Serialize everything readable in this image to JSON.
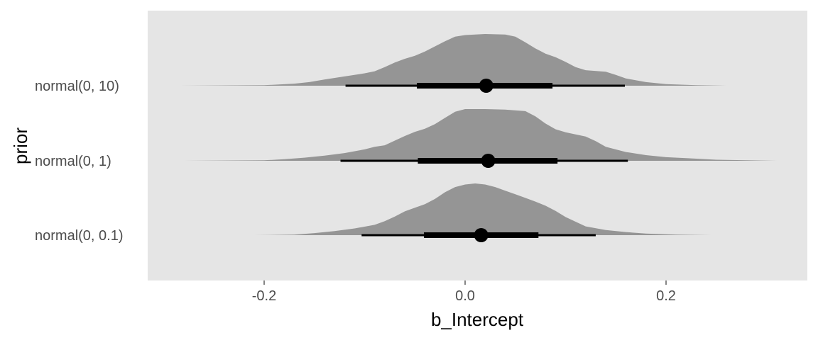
{
  "chart_data": {
    "type": "halfeye",
    "xlabel": "b_Intercept",
    "ylabel": "prior",
    "xlim": [
      -0.3,
      0.34
    ],
    "x_ticks": [
      -0.2,
      0.0,
      0.2
    ],
    "x_tick_labels": [
      "-0.2",
      "0.0",
      "0.2"
    ],
    "grid": false,
    "colors": {
      "panel": "#e5e5e5",
      "density": "#959595",
      "interval": "#000000",
      "tick_label": "#4d4d4d"
    },
    "categories": [
      "normal(0, 10)",
      "normal(0, 1)",
      "normal(0, 0.1)"
    ],
    "series": [
      {
        "label": "normal(0, 10)",
        "point": 0.021,
        "interval_66": [
          -0.048,
          0.087
        ],
        "interval_95": [
          -0.119,
          0.159
        ],
        "density": [
          [
            -0.285,
            0.0
          ],
          [
            -0.2,
            0.01
          ],
          [
            -0.17,
            0.04
          ],
          [
            -0.155,
            0.07
          ],
          [
            -0.14,
            0.12
          ],
          [
            -0.12,
            0.18
          ],
          [
            -0.1,
            0.24
          ],
          [
            -0.09,
            0.28
          ],
          [
            -0.08,
            0.36
          ],
          [
            -0.07,
            0.45
          ],
          [
            -0.06,
            0.52
          ],
          [
            -0.05,
            0.58
          ],
          [
            -0.04,
            0.66
          ],
          [
            -0.03,
            0.76
          ],
          [
            -0.02,
            0.86
          ],
          [
            -0.01,
            0.95
          ],
          [
            0.0,
            0.98
          ],
          [
            0.02,
            1.0
          ],
          [
            0.04,
            0.99
          ],
          [
            0.05,
            0.95
          ],
          [
            0.06,
            0.84
          ],
          [
            0.07,
            0.72
          ],
          [
            0.08,
            0.62
          ],
          [
            0.09,
            0.55
          ],
          [
            0.1,
            0.46
          ],
          [
            0.11,
            0.36
          ],
          [
            0.12,
            0.3
          ],
          [
            0.14,
            0.27
          ],
          [
            0.15,
            0.21
          ],
          [
            0.16,
            0.14
          ],
          [
            0.18,
            0.07
          ],
          [
            0.2,
            0.03
          ],
          [
            0.23,
            0.01
          ],
          [
            0.26,
            0.0
          ]
        ]
      },
      {
        "label": "normal(0, 1)",
        "point": 0.023,
        "interval_66": [
          -0.047,
          0.092
        ],
        "interval_95": [
          -0.124,
          0.162
        ],
        "density": [
          [
            -0.28,
            0.0
          ],
          [
            -0.2,
            0.01
          ],
          [
            -0.18,
            0.03
          ],
          [
            -0.16,
            0.06
          ],
          [
            -0.14,
            0.1
          ],
          [
            -0.12,
            0.15
          ],
          [
            -0.1,
            0.22
          ],
          [
            -0.09,
            0.27
          ],
          [
            -0.08,
            0.3
          ],
          [
            -0.07,
            0.39
          ],
          [
            -0.06,
            0.48
          ],
          [
            -0.05,
            0.56
          ],
          [
            -0.04,
            0.62
          ],
          [
            -0.03,
            0.71
          ],
          [
            -0.02,
            0.83
          ],
          [
            -0.01,
            0.95
          ],
          [
            0.0,
            1.0
          ],
          [
            0.02,
            1.0
          ],
          [
            0.04,
            0.99
          ],
          [
            0.06,
            0.96
          ],
          [
            0.07,
            0.86
          ],
          [
            0.08,
            0.72
          ],
          [
            0.09,
            0.61
          ],
          [
            0.1,
            0.55
          ],
          [
            0.12,
            0.47
          ],
          [
            0.13,
            0.38
          ],
          [
            0.14,
            0.27
          ],
          [
            0.16,
            0.17
          ],
          [
            0.18,
            0.11
          ],
          [
            0.2,
            0.07
          ],
          [
            0.22,
            0.05
          ],
          [
            0.25,
            0.02
          ],
          [
            0.28,
            0.01
          ],
          [
            0.31,
            0.0
          ]
        ]
      },
      {
        "label": "normal(0, 0.1)",
        "point": 0.016,
        "interval_66": [
          -0.041,
          0.073
        ],
        "interval_95": [
          -0.103,
          0.13
        ],
        "density": [
          [
            -0.21,
            0.0
          ],
          [
            -0.17,
            0.01
          ],
          [
            -0.15,
            0.04
          ],
          [
            -0.13,
            0.08
          ],
          [
            -0.11,
            0.13
          ],
          [
            -0.09,
            0.2
          ],
          [
            -0.08,
            0.27
          ],
          [
            -0.07,
            0.36
          ],
          [
            -0.06,
            0.46
          ],
          [
            -0.05,
            0.53
          ],
          [
            -0.04,
            0.6
          ],
          [
            -0.03,
            0.7
          ],
          [
            -0.02,
            0.83
          ],
          [
            -0.01,
            0.93
          ],
          [
            0.0,
            0.98
          ],
          [
            0.01,
            1.0
          ],
          [
            0.02,
            0.98
          ],
          [
            0.03,
            0.93
          ],
          [
            0.04,
            0.86
          ],
          [
            0.05,
            0.79
          ],
          [
            0.06,
            0.72
          ],
          [
            0.07,
            0.65
          ],
          [
            0.08,
            0.57
          ],
          [
            0.09,
            0.47
          ],
          [
            0.1,
            0.35
          ],
          [
            0.11,
            0.26
          ],
          [
            0.12,
            0.17
          ],
          [
            0.14,
            0.1
          ],
          [
            0.16,
            0.06
          ],
          [
            0.18,
            0.03
          ],
          [
            0.21,
            0.01
          ],
          [
            0.245,
            0.0
          ]
        ]
      }
    ]
  }
}
